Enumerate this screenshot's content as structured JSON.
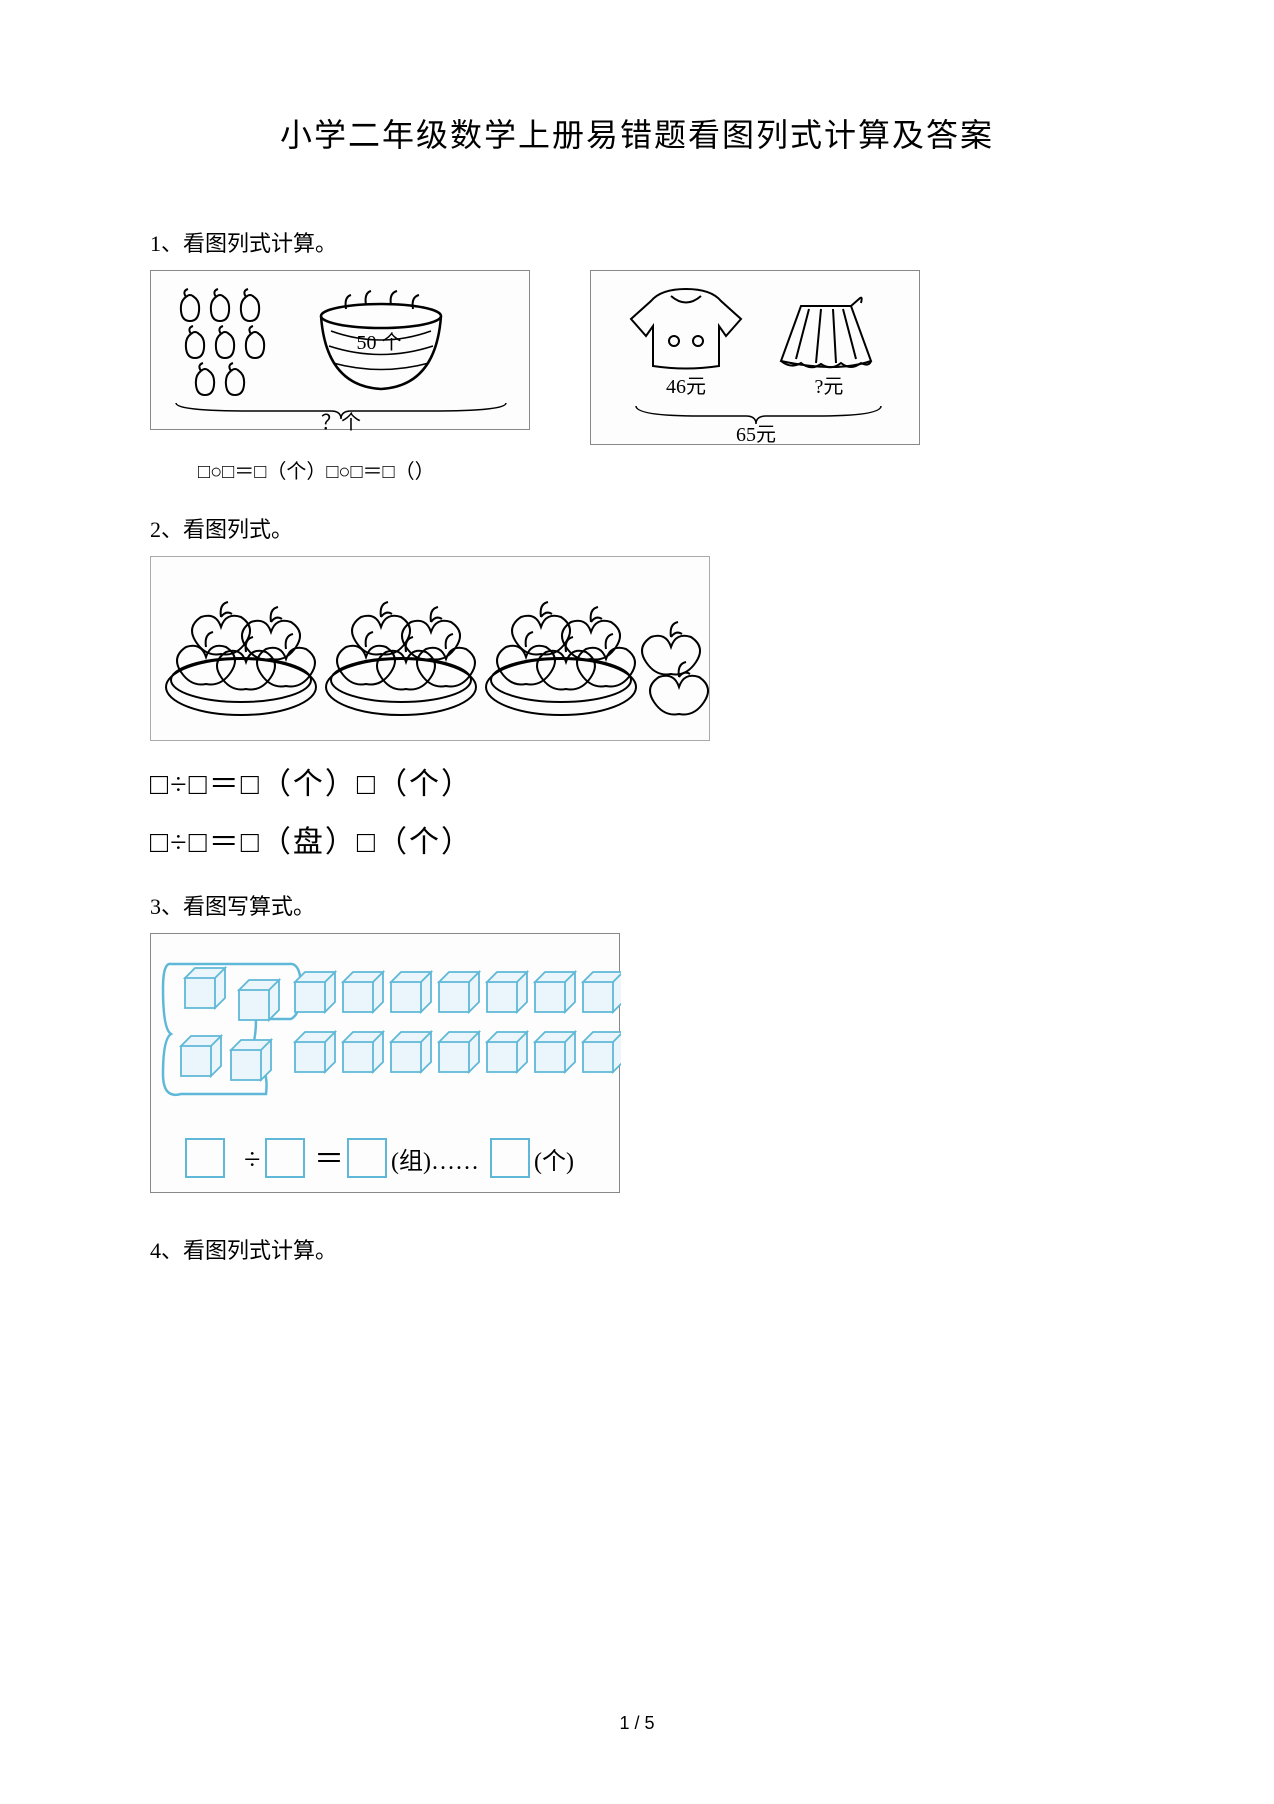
{
  "title": "小学二年级数学上册易错题看图列式计算及答案",
  "page_number": "1 / 5",
  "q1": {
    "label": "1、看图列式计算。",
    "figA": {
      "basket_label": "50 个",
      "question_label": "？个",
      "pear_count_outside": 8,
      "border_color": "#888888",
      "pear_stroke": "#000000"
    },
    "figB": {
      "shirt_price": "46元",
      "skirt_price": "?元",
      "total_price": "65元",
      "border_color": "#888888"
    },
    "formula": "□○□＝□（个）□○□＝□（）"
  },
  "q2": {
    "label": "2、看图列式。",
    "plates": 3,
    "apples_per_plate": 7,
    "loose_apples": 2,
    "formula1": "□÷□＝□（个）□（个）",
    "formula2": "□÷□＝□（盘）□（个）",
    "stroke": "#000000"
  },
  "q3": {
    "label": "3、看图写算式。",
    "rows": 2,
    "cols": 9,
    "circled_group": 3,
    "cube_stroke": "#5fb8d8",
    "cube_fill": "#eaf6fb",
    "formula_parts": {
      "div": "÷",
      "eq": "＝",
      "unit1": "(组)……",
      "unit2": "(个)"
    }
  },
  "q4": {
    "label": "4、看图列式计算。"
  },
  "colors": {
    "text": "#000000",
    "page_bg": "#ffffff",
    "box_border": "#888888"
  },
  "fontsize": {
    "title": 32,
    "question": 22,
    "formula_small": 20,
    "formula_big": 30
  }
}
